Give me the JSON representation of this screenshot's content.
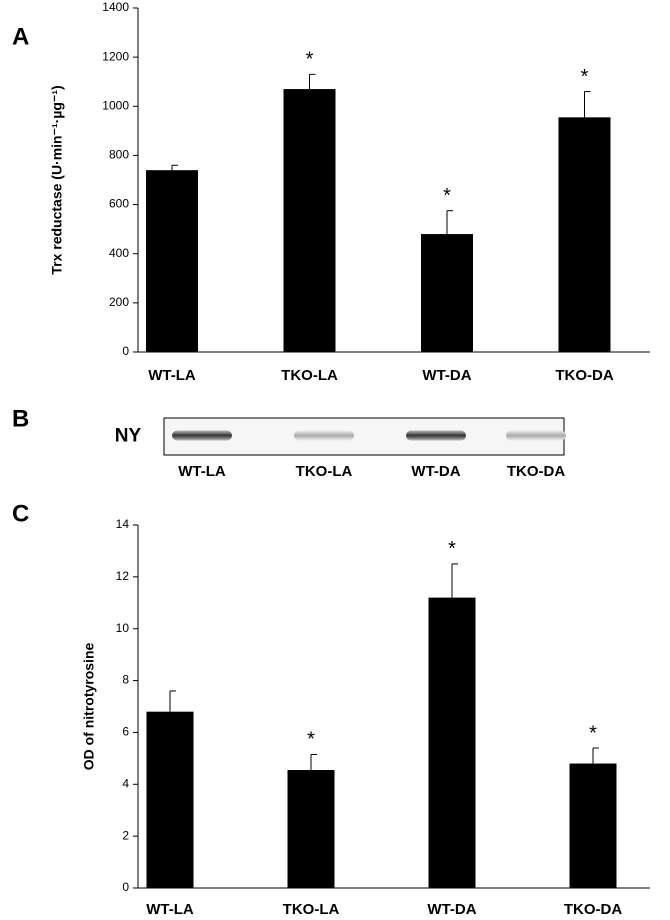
{
  "chart_data": [
    {
      "type": "bar",
      "panel": "A",
      "ylabel": "Trx reductase (U·min⁻¹·µg⁻¹)",
      "categories": [
        "WT-LA",
        "TKO-LA",
        "WT-DA",
        "TKO-DA"
      ],
      "values": [
        740,
        1070,
        480,
        955
      ],
      "errors": [
        20,
        60,
        95,
        105
      ],
      "color": "#000000",
      "ylim": [
        0,
        1400
      ],
      "yticks": [
        0,
        200,
        400,
        600,
        800,
        1000,
        1200,
        1400
      ],
      "annotations": [
        {
          "text": "*",
          "category": "TKO-LA"
        },
        {
          "text": "*",
          "category": "WT-DA"
        },
        {
          "text": "*",
          "category": "TKO-DA"
        }
      ]
    },
    {
      "type": "blot",
      "panel": "B",
      "label": "NY",
      "categories": [
        "WT-LA",
        "TKO-LA",
        "WT-DA",
        "TKO-DA"
      ]
    },
    {
      "type": "bar",
      "panel": "C",
      "ylabel": "OD of nitrotyrosine",
      "categories": [
        "WT-LA",
        "TKO-LA",
        "WT-DA",
        "TKO-DA"
      ],
      "values": [
        6.8,
        4.55,
        11.2,
        4.8
      ],
      "errors": [
        0.8,
        0.6,
        1.3,
        0.6
      ],
      "color": "#000000",
      "ylim": [
        0,
        14
      ],
      "yticks": [
        0,
        2,
        4,
        6,
        8,
        10,
        12,
        14
      ],
      "annotations": [
        {
          "text": "*",
          "category": "TKO-LA"
        },
        {
          "text": "*",
          "category": "WT-DA"
        },
        {
          "text": "*",
          "category": "TKO-DA"
        }
      ]
    }
  ]
}
